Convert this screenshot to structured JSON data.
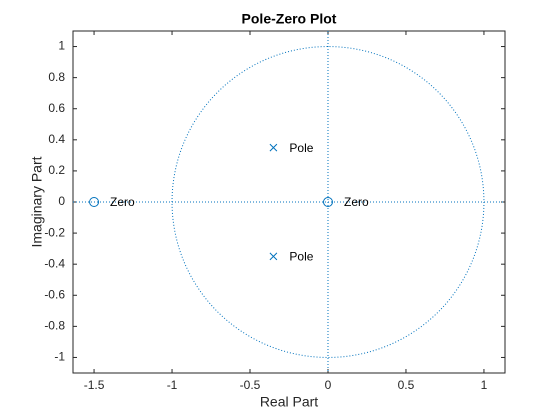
{
  "chart_data": {
    "type": "pole-zero",
    "title": "Pole-Zero Plot",
    "x_label": "Real Part",
    "y_label": "Imaginary Part",
    "color": "#0072bd",
    "unit_circle": true,
    "xlim": [
      -1.635,
      1.135
    ],
    "ylim": [
      -1.1,
      1.1
    ],
    "xticks": [
      -1.5,
      -1,
      -0.5,
      0,
      0.5,
      1
    ],
    "yticks": [
      -1,
      -0.8,
      -0.6,
      -0.4,
      -0.2,
      0,
      0.2,
      0.4,
      0.6,
      0.8,
      1
    ],
    "series": [
      {
        "name": "Zero",
        "marker": "o",
        "x": [
          -1.5,
          0
        ],
        "values": [
          0,
          0
        ]
      },
      {
        "name": "Pole",
        "marker": "x",
        "x": [
          -0.35,
          -0.35
        ],
        "values": [
          0.35,
          -0.35
        ]
      }
    ]
  }
}
